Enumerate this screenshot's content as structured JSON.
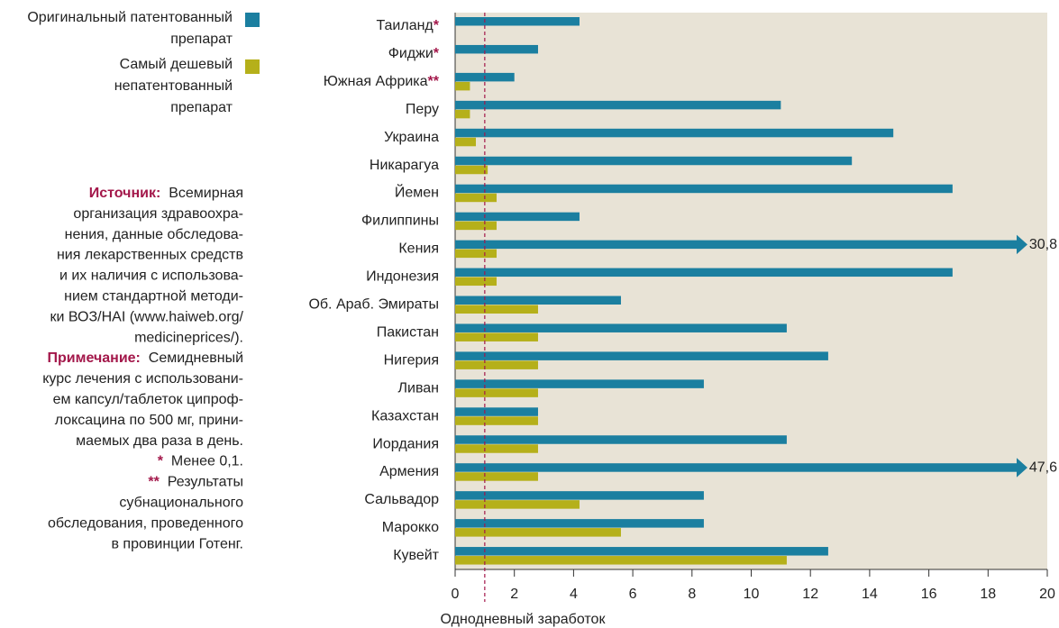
{
  "chart_data": {
    "type": "hbar",
    "categories": [
      "Таиланд",
      "Фиджи",
      "Южная Африка",
      "Перу",
      "Украина",
      "Никарагуа",
      "Йемен",
      "Филиппины",
      "Кения",
      "Индонезия",
      "Об. Араб. Эмираты",
      "Пакистан",
      "Нигерия",
      "Ливан",
      "Казахстан",
      "Иордания",
      "Армения",
      "Сальвадор",
      "Марокко",
      "Кувейт"
    ],
    "category_notes": [
      "*",
      "*",
      "**",
      null,
      null,
      null,
      null,
      null,
      null,
      null,
      null,
      null,
      null,
      null,
      null,
      null,
      null,
      null,
      null,
      null
    ],
    "series": [
      {
        "name": "Оригинальный патентованный препарат",
        "color": "#1b7fa0",
        "values": [
          4.2,
          2.8,
          2.0,
          11.0,
          14.8,
          13.4,
          16.8,
          4.2,
          30.8,
          16.8,
          5.6,
          11.2,
          12.6,
          8.4,
          2.8,
          11.2,
          47.6,
          8.4,
          8.4,
          12.6
        ],
        "value_labels": [
          null,
          null,
          null,
          null,
          null,
          null,
          null,
          null,
          "30,8",
          null,
          null,
          null,
          null,
          null,
          null,
          null,
          "47,6",
          null,
          null,
          null
        ]
      },
      {
        "name": "Самый дешевый непатентованный препарат",
        "color": "#b5b01a",
        "values": [
          null,
          null,
          0.5,
          0.5,
          0.7,
          1.1,
          1.4,
          1.4,
          1.4,
          1.4,
          2.8,
          2.8,
          2.8,
          2.8,
          2.8,
          2.8,
          2.8,
          4.2,
          5.6,
          11.2
        ]
      }
    ],
    "xlabel": "Однодневный заработок",
    "xlim": [
      0,
      20
    ],
    "xticks": [
      0,
      2,
      4,
      6,
      8,
      10,
      12,
      14,
      16,
      18,
      20
    ],
    "reference_line": {
      "value": 1,
      "color": "#a3174a"
    },
    "plot_background": "#e8e3d6",
    "notes": [
      {
        "label": "Источник:",
        "lines": [
          "Всемирная",
          "организация здравоохра-",
          "нения, данные обследова-",
          "ния лекарственных средств",
          "и их наличия с использова-",
          "нием стандартной методи-",
          "ки ВОЗ/HAI (www.haiweb.org/",
          "medicineprices/)."
        ]
      },
      {
        "label": "Примечание:",
        "lines": [
          "Семидневный",
          "курс лечения с использовани-",
          "ем капсул/таблеток ципроф-",
          "локсацина по 500 мг, прини-",
          "маемых два раза в день."
        ]
      },
      {
        "label": "*",
        "lines": [
          "Менее 0,1."
        ]
      },
      {
        "label": "**",
        "lines": [
          "Результаты",
          "субнационального",
          "обследования, проведенного",
          "в провинции Готенг."
        ]
      }
    ],
    "note_color": "#a3174a"
  }
}
